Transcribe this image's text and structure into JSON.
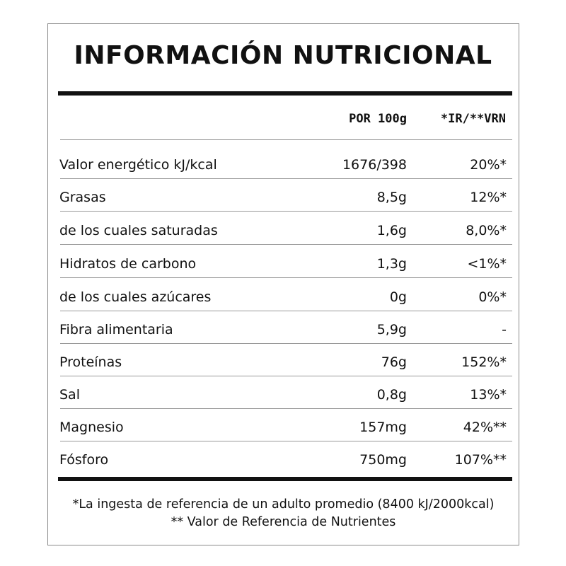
{
  "title": "INFORMACIÓN NUTRICIONAL",
  "header": {
    "per100": "POR 100g",
    "ir": "*IR/**VRN"
  },
  "rows": [
    {
      "label": "Valor energético kJ/kcal",
      "value": "1676/398",
      "ir": "20%*"
    },
    {
      "label": "Grasas",
      "value": "8,5g",
      "ir": "12%*"
    },
    {
      "label": "de los cuales saturadas",
      "value": "1,6g",
      "ir": "8,0%*"
    },
    {
      "label": "Hidratos de carbono",
      "value": "1,3g",
      "ir": "<1%*"
    },
    {
      "label": "de los cuales azúcares",
      "value": "0g",
      "ir": "0%*"
    },
    {
      "label": "Fibra alimentaria",
      "value": "5,9g",
      "ir": "-"
    },
    {
      "label": "Proteínas",
      "value": "76g",
      "ir": "152%*"
    },
    {
      "label": "Sal",
      "value": "0,8g",
      "ir": "13%*"
    },
    {
      "label": "Magnesio",
      "value": "157mg",
      "ir": "42%**"
    },
    {
      "label": "Fósforo",
      "value": "750mg",
      "ir": "107%**"
    }
  ],
  "footnotes": [
    "*La ingesta de referencia de un adulto promedio (8400 kJ/2000kcal)",
    "** Valor de Referencia de Nutrientes"
  ]
}
